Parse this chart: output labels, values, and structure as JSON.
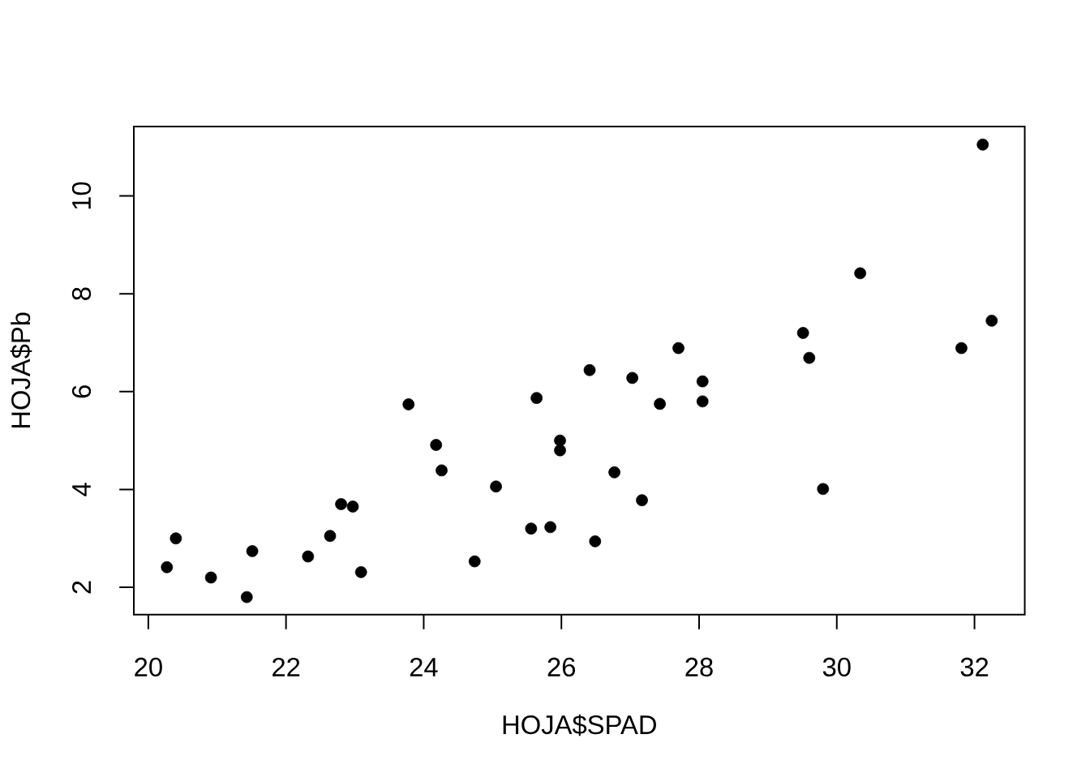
{
  "chart_data": {
    "type": "scatter",
    "xlabel": "HOJA$SPAD",
    "ylabel": "HOJA$Pb",
    "x": [
      20.27,
      20.4,
      20.91,
      21.43,
      21.51,
      22.32,
      22.64,
      22.8,
      22.97,
      23.09,
      23.78,
      24.18,
      24.26,
      24.74,
      25.05,
      25.56,
      25.64,
      25.84,
      25.98,
      25.98,
      26.41,
      26.49,
      26.77,
      27.03,
      27.17,
      27.43,
      27.7,
      28.05,
      28.05,
      29.51,
      29.6,
      29.8,
      30.34,
      31.81,
      32.12,
      32.25
    ],
    "values": [
      2.41,
      3.0,
      2.2,
      1.8,
      2.74,
      2.63,
      3.05,
      3.7,
      3.65,
      2.31,
      5.74,
      4.91,
      4.39,
      2.53,
      4.06,
      3.2,
      5.87,
      3.23,
      5.0,
      4.8,
      6.44,
      2.94,
      4.35,
      6.28,
      3.78,
      5.75,
      6.89,
      6.21,
      5.8,
      7.2,
      6.69,
      4.01,
      8.42,
      6.89,
      11.05,
      7.45
    ],
    "color": "#000000",
    "marker": "circle",
    "xlim": [
      19.79,
      32.73
    ],
    "ylim": [
      1.44,
      11.42
    ],
    "xticks": [
      20,
      22,
      24,
      26,
      28,
      30,
      32
    ],
    "yticks": [
      2,
      4,
      6,
      8,
      10
    ]
  }
}
